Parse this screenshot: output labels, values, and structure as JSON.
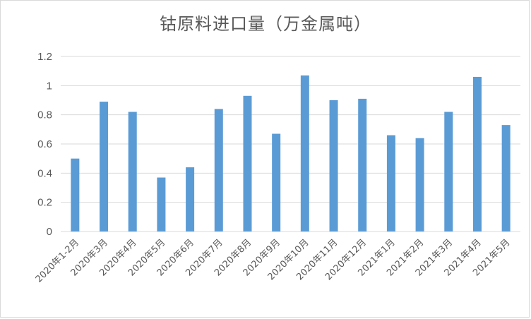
{
  "chart_data": {
    "type": "bar",
    "title": "钴原料进口量（万金属吨）",
    "categories": [
      "2020年1-2月",
      "2020年3月",
      "2020年4月",
      "2020年5月",
      "2020年6月",
      "2020年7月",
      "2020年8月",
      "2020年9月",
      "2020年10月",
      "2020年11月",
      "2020年12月",
      "2021年1月",
      "2021年2月",
      "2021年3月",
      "2021年4月",
      "2021年5月"
    ],
    "values": [
      0.5,
      0.89,
      0.82,
      0.37,
      0.44,
      0.84,
      0.93,
      0.67,
      1.07,
      0.9,
      0.91,
      0.66,
      0.64,
      0.82,
      1.06,
      0.73
    ],
    "ylim": [
      0,
      1.2
    ],
    "yticks": [
      "0",
      "0.2",
      "0.4",
      "0.6",
      "0.8",
      "1",
      "1.2"
    ],
    "grid": true,
    "bar_color": "#5b9bd5",
    "grid_color": "#d9d9d9",
    "xlabel": "",
    "ylabel": ""
  }
}
